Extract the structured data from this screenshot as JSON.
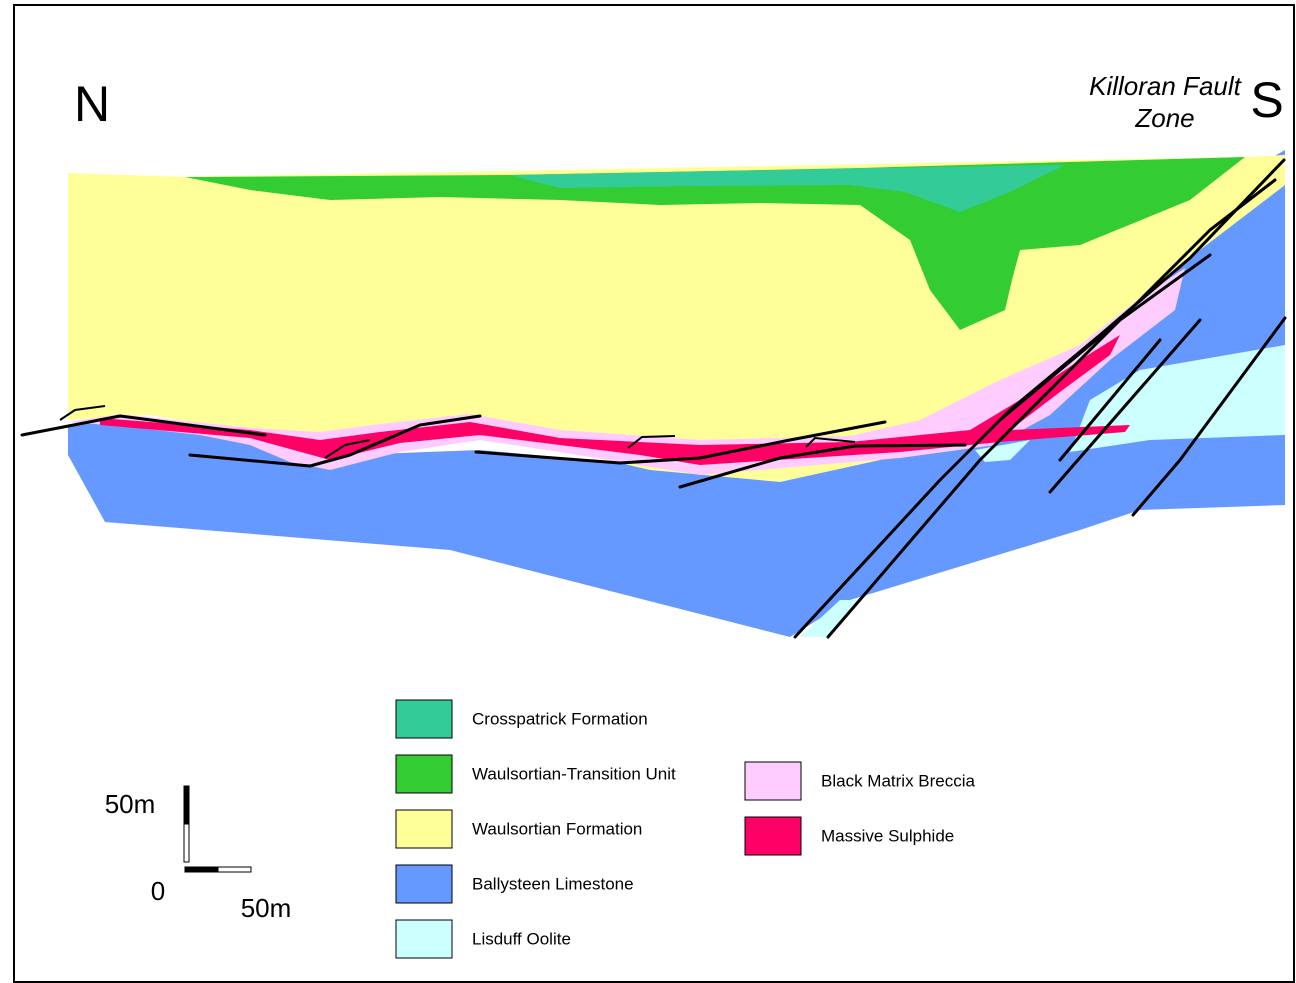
{
  "orientation": {
    "north": "N",
    "south": "S"
  },
  "fault_label": {
    "line1": "Killoran Fault",
    "line2": "Zone"
  },
  "legend": {
    "items": [
      {
        "label": "Crosspatrick Formation",
        "color": "#33cc99"
      },
      {
        "label": "Waulsortian-Transition Unit",
        "color": "#33cc33"
      },
      {
        "label": "Waulsortian Formation",
        "color": "#ffff99"
      },
      {
        "label": "Ballysteen Limestone",
        "color": "#6699ff"
      },
      {
        "label": "Lisduff Oolite",
        "color": "#ccffff"
      },
      {
        "label": "Black Matrix Breccia",
        "color": "#ffccff"
      },
      {
        "label": "Massive Sulphide",
        "color": "#ff0066"
      }
    ]
  },
  "scale_bar": {
    "vertical_label": "50m",
    "origin_label": "0",
    "horizontal_label": "50m"
  }
}
